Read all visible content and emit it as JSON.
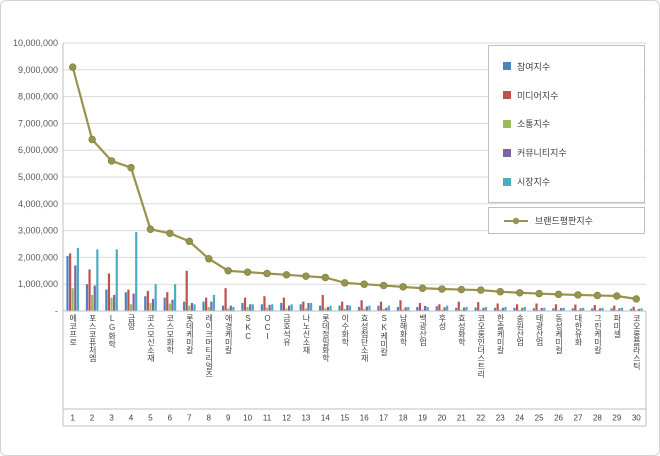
{
  "figure": {
    "background": "#ffffff",
    "border_color": "#d4d4d4",
    "grid_color": "#d9d9d9",
    "axis_color": "#bfbfbf",
    "tick_text_color": "#595959",
    "label_text_color": "#404040"
  },
  "chart_data": {
    "type": "bar",
    "subtype": "grouped-bar-with-line-overlay",
    "title": "",
    "xlabel": "",
    "ylabel": "",
    "grid": true,
    "legend_position": "top-right",
    "y_axis": {
      "min": 0,
      "max": 10000000,
      "step": 1000000,
      "zero_label": "-"
    },
    "categories": [
      "에코프로",
      "포스코퓨처엠",
      "LG화학",
      "금양",
      "코스모신소재",
      "코스모화학",
      "롯데케미칼",
      "레이크머티리얼즈",
      "애경케미칼",
      "SKC",
      "OCI",
      "금호석유",
      "나노신소재",
      "롯데정밀화학",
      "이수화학",
      "효성첨단소재",
      "SK케미칼",
      "남해화학",
      "백광산업",
      "후성",
      "효성화학",
      "코오롱인더스트리",
      "한솔케미칼",
      "송원산업",
      "태광산업",
      "동성케미컬",
      "대한유화",
      "그린케미칼",
      "파미셀",
      "코오롱플라스틱"
    ],
    "ranks": [
      1,
      2,
      3,
      4,
      5,
      6,
      7,
      8,
      9,
      10,
      11,
      12,
      13,
      14,
      15,
      16,
      17,
      18,
      19,
      20,
      21,
      22,
      23,
      24,
      25,
      26,
      27,
      28,
      29,
      30
    ],
    "series": [
      {
        "name": "참여지수",
        "type": "bar",
        "color": "#4F81BD",
        "values": [
          2050000,
          1000000,
          800000,
          700000,
          550000,
          500000,
          350000,
          350000,
          200000,
          300000,
          250000,
          300000,
          250000,
          200000,
          200000,
          150000,
          200000,
          150000,
          150000,
          180000,
          120000,
          130000,
          120000,
          120000,
          100000,
          100000,
          100000,
          100000,
          100000,
          80000
        ]
      },
      {
        "name": "미디어지수",
        "type": "bar",
        "color": "#C0504D",
        "values": [
          2150000,
          1550000,
          1400000,
          800000,
          750000,
          700000,
          1500000,
          500000,
          850000,
          500000,
          550000,
          500000,
          350000,
          600000,
          350000,
          400000,
          350000,
          400000,
          300000,
          250000,
          350000,
          330000,
          280000,
          250000,
          280000,
          250000,
          240000,
          220000,
          200000,
          160000
        ]
      },
      {
        "name": "소통지수",
        "type": "bar",
        "color": "#9BBB59",
        "values": [
          850000,
          600000,
          500000,
          250000,
          300000,
          280000,
          200000,
          150000,
          100000,
          150000,
          120000,
          100000,
          100000,
          100000,
          80000,
          80000,
          80000,
          60000,
          60000,
          50000,
          50000,
          50000,
          50000,
          40000,
          40000,
          40000,
          40000,
          40000,
          40000,
          30000
        ]
      },
      {
        "name": "커뮤니티지수",
        "type": "bar",
        "color": "#8064A2",
        "values": [
          1700000,
          950000,
          600000,
          650000,
          450000,
          420000,
          300000,
          350000,
          200000,
          250000,
          230000,
          200000,
          300000,
          150000,
          220000,
          170000,
          120000,
          140000,
          190000,
          140000,
          130000,
          120000,
          120000,
          120000,
          110000,
          110000,
          100000,
          100000,
          100000,
          80000
        ]
      },
      {
        "name": "시장지수",
        "type": "bar",
        "color": "#4BACC6",
        "values": [
          2350000,
          2300000,
          2300000,
          2950000,
          1000000,
          1000000,
          250000,
          600000,
          150000,
          250000,
          250000,
          250000,
          300000,
          200000,
          200000,
          200000,
          200000,
          150000,
          150000,
          200000,
          150000,
          150000,
          150000,
          150000,
          120000,
          120000,
          120000,
          120000,
          120000,
          100000
        ]
      },
      {
        "name": "브랜드평판지수",
        "type": "line",
        "color": "#97944E",
        "marker_color": "#97944E",
        "values": [
          9100000,
          6400000,
          5600000,
          5350000,
          3050000,
          2900000,
          2600000,
          1950000,
          1500000,
          1450000,
          1400000,
          1350000,
          1300000,
          1250000,
          1050000,
          1000000,
          950000,
          900000,
          850000,
          820000,
          800000,
          780000,
          720000,
          680000,
          650000,
          620000,
          600000,
          580000,
          560000,
          450000
        ]
      }
    ]
  }
}
